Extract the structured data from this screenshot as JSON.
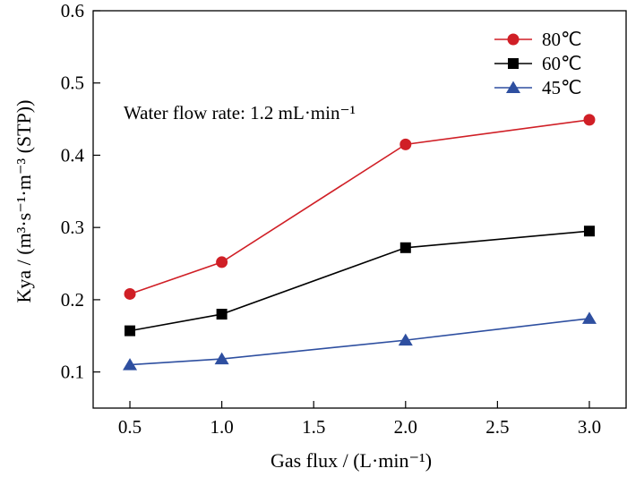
{
  "chart_data": {
    "type": "line",
    "x": [
      0.5,
      1.0,
      2.0,
      3.0
    ],
    "x_ticks": [
      "0.5",
      "1.0",
      "1.5",
      "2.0",
      "2.5",
      "3.0"
    ],
    "y_ticks": [
      "0.1",
      "0.2",
      "0.3",
      "0.4",
      "0.5",
      "0.6"
    ],
    "xlim": [
      0.3,
      3.2
    ],
    "ylim": [
      0.05,
      0.6
    ],
    "xlabel": "Gas flux / (L·min⁻¹)",
    "ylabel": "Kya / (m³·s⁻¹·m⁻³ (STP))",
    "annotation": "Water flow rate: 1.2 mL·min⁻¹",
    "grid": false,
    "legend_position": "top-right",
    "series": [
      {
        "name": "80℃",
        "color": "#d01f26",
        "marker": "circle",
        "values": [
          0.208,
          0.252,
          0.415,
          0.449
        ]
      },
      {
        "name": "60℃",
        "color": "#000000",
        "marker": "square",
        "values": [
          0.157,
          0.18,
          0.272,
          0.295
        ]
      },
      {
        "name": "45℃",
        "color": "#2e4fa0",
        "marker": "triangle",
        "values": [
          0.11,
          0.118,
          0.144,
          0.174
        ]
      }
    ]
  }
}
